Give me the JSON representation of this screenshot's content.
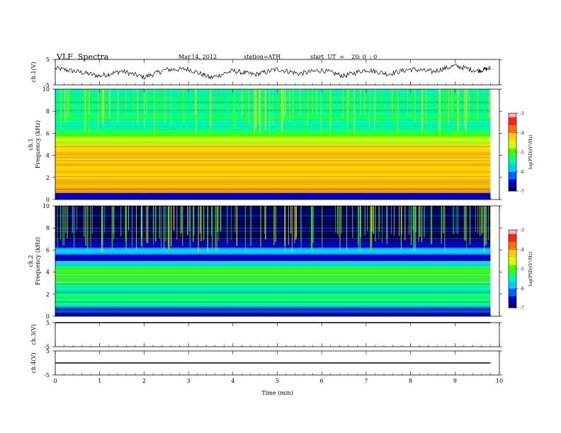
{
  "header": {
    "title": "VLF  Spectra",
    "date": "Mar.14, 2012",
    "station": "station=ATH",
    "start": "start  UT  =    20: 0  : 0"
  },
  "colors": {
    "spectrogram_scale": [
      "#00004a",
      "#0000c8",
      "#0060ff",
      "#00d0ff",
      "#00ff90",
      "#40ff00",
      "#d8ff00",
      "#ffd000",
      "#ff7000",
      "#ff2020",
      "#ffb0b0"
    ],
    "trace": "#000000"
  },
  "chart_data": [
    {
      "type": "line",
      "id": "ch1-waveform",
      "ylabel": "ch.1(V)",
      "ylim": [
        -5,
        5
      ],
      "yticks": [
        "5",
        "-5"
      ],
      "series": [
        {
          "x": [
            0.0,
            0.5,
            1.0,
            1.5,
            2.0,
            2.5,
            3.0,
            3.5,
            4.0,
            4.5,
            5.0,
            5.5,
            6.0,
            6.5,
            7.0,
            7.5,
            8.0,
            8.5,
            9.0,
            9.5,
            9.8
          ],
          "values": [
            1.5,
            0.2,
            -1.5,
            0.4,
            -2.0,
            1.0,
            1.2,
            -2.2,
            0.5,
            -1.0,
            1.2,
            -0.6,
            0.8,
            -1.5,
            1.0,
            -0.7,
            1.2,
            0.2,
            2.5,
            0.5,
            1.5
          ]
        }
      ]
    },
    {
      "type": "heatmap",
      "id": "ch1-spectrogram",
      "ylabel": "ch.1\nFrequency (kHz)",
      "xlim": [
        0,
        10
      ],
      "ylim": [
        0,
        10
      ],
      "yticks": [
        "10",
        "8",
        "6",
        "4",
        "2",
        "0"
      ],
      "colorbar": {
        "label": "log(PSD)(V²/Hz)",
        "range": [
          -7,
          -3
        ],
        "ticks": [
          "-3",
          "-4",
          "-5",
          "-6",
          "-7"
        ]
      },
      "bands": [
        {
          "from": 0.0,
          "to": 0.6,
          "level": -6.6
        },
        {
          "from": 0.6,
          "to": 1.0,
          "level": -4.0
        },
        {
          "from": 1.0,
          "to": 5.0,
          "level": -4.2
        },
        {
          "from": 5.0,
          "to": 5.6,
          "level": -4.8
        },
        {
          "from": 5.6,
          "to": 6.2,
          "level": -5.0
        },
        {
          "from": 6.2,
          "to": 7.0,
          "level": -5.5
        },
        {
          "from": 7.0,
          "to": 10.0,
          "level": -5.5
        }
      ]
    },
    {
      "type": "heatmap",
      "id": "ch2-spectrogram",
      "ylabel": "ch.2\nFrequency (kHz)",
      "xlim": [
        0,
        10
      ],
      "ylim": [
        0,
        10
      ],
      "yticks": [
        "10",
        "8",
        "6",
        "4",
        "2",
        "0"
      ],
      "colorbar": {
        "label": "log(PSD)(V²/Hz)",
        "range": [
          -7,
          -3
        ],
        "ticks": [
          "-3",
          "-4",
          "-5",
          "-6",
          "-7"
        ]
      },
      "bands": [
        {
          "from": 0.0,
          "to": 0.4,
          "level": -6.8
        },
        {
          "from": 0.4,
          "to": 0.8,
          "level": -6.2
        },
        {
          "from": 0.8,
          "to": 3.0,
          "level": -5.5
        },
        {
          "from": 3.0,
          "to": 4.5,
          "level": -5.2
        },
        {
          "from": 4.5,
          "to": 5.0,
          "level": -5.8
        },
        {
          "from": 5.0,
          "to": 5.6,
          "level": -6.6
        },
        {
          "from": 5.6,
          "to": 6.2,
          "level": -5.7
        },
        {
          "from": 6.2,
          "to": 6.8,
          "level": -6.6
        },
        {
          "from": 6.8,
          "to": 10.0,
          "level": -6.9
        }
      ]
    },
    {
      "type": "line",
      "id": "ch3-waveform",
      "ylabel": "ch.3(V)",
      "ylim": [
        -5,
        5
      ],
      "yticks": [
        "5",
        "-5"
      ],
      "series": [
        {
          "x": [
            0,
            9.8
          ],
          "values": [
            5,
            5
          ]
        }
      ]
    },
    {
      "type": "line",
      "id": "ch4-waveform",
      "ylabel": "ch.4(V)",
      "ylim": [
        -5,
        5
      ],
      "yticks": [
        "5",
        "-5"
      ],
      "series": [
        {
          "x": [
            0,
            9.8
          ],
          "values": [
            0,
            0
          ]
        }
      ]
    }
  ],
  "xaxis": {
    "label": "Time  (min)",
    "range": [
      0,
      10
    ],
    "data_end": 9.8,
    "ticks": [
      "0",
      "1",
      "2",
      "3",
      "4",
      "5",
      "6",
      "7",
      "8",
      "9",
      "10"
    ]
  }
}
